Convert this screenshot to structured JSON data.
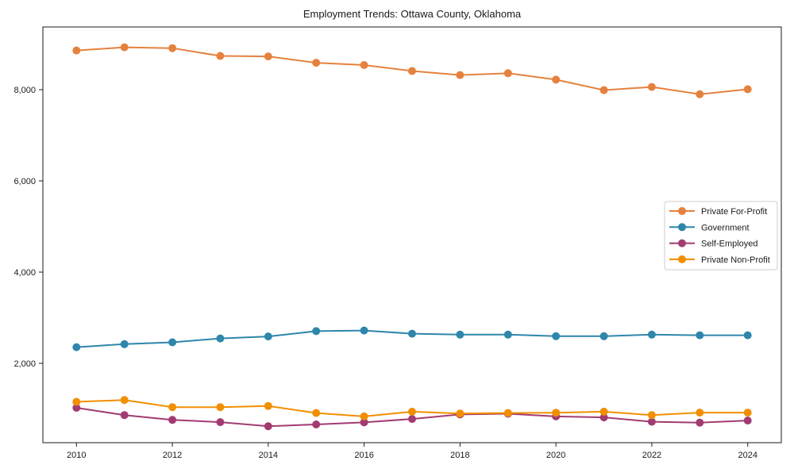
{
  "chart_data": {
    "type": "line",
    "title": "Employment Trends: Ottawa County, Oklahoma",
    "xlabel": "",
    "ylabel": "",
    "x_years": [
      2010,
      2011,
      2012,
      2013,
      2014,
      2015,
      2016,
      2017,
      2018,
      2019,
      2020,
      2021,
      2022,
      2023,
      2024
    ],
    "series": [
      {
        "name": "Private For-Profit",
        "color": "#E5813E",
        "values": [
          8860,
          8930,
          8910,
          8740,
          8730,
          8590,
          8540,
          8410,
          8320,
          8360,
          8220,
          7990,
          8060,
          7900,
          8010
        ]
      },
      {
        "name": "Government",
        "color": "#2E86AB",
        "values": [
          2355,
          2420,
          2460,
          2545,
          2590,
          2705,
          2720,
          2650,
          2630,
          2630,
          2595,
          2595,
          2630,
          2615,
          2615
        ]
      },
      {
        "name": "Self-Employed",
        "color": "#A23B72",
        "values": [
          1025,
          865,
          760,
          710,
          620,
          660,
          705,
          780,
          880,
          895,
          835,
          815,
          720,
          700,
          745
        ]
      },
      {
        "name": "Private Non-Profit",
        "color": "#F18F01",
        "values": [
          1155,
          1195,
          1040,
          1040,
          1065,
          910,
          835,
          940,
          900,
          910,
          915,
          940,
          865,
          920,
          920
        ]
      }
    ],
    "xticks": [
      {
        "value": 2010,
        "label": "2010"
      },
      {
        "value": 2012,
        "label": "2012"
      },
      {
        "value": 2014,
        "label": "2014"
      },
      {
        "value": 2016,
        "label": "2016"
      },
      {
        "value": 2018,
        "label": "2018"
      },
      {
        "value": 2020,
        "label": "2020"
      },
      {
        "value": 2022,
        "label": "2022"
      },
      {
        "value": 2024,
        "label": "2024"
      }
    ],
    "yticks": [
      {
        "value": 2000,
        "label": "2,000"
      },
      {
        "value": 4000,
        "label": "4,000"
      },
      {
        "value": 6000,
        "label": "6,000"
      },
      {
        "value": 8000,
        "label": "8,000"
      }
    ],
    "xlim": [
      2009.3,
      2024.7
    ],
    "ylim": [
      260,
      9375
    ],
    "grid": false,
    "background": "#ffffff",
    "axis_color": "#1a1a1a",
    "text_color": "#1a1a1a",
    "legend": {
      "position": "center-right",
      "background": "#ffffff",
      "border_color": "#cccccc"
    }
  }
}
